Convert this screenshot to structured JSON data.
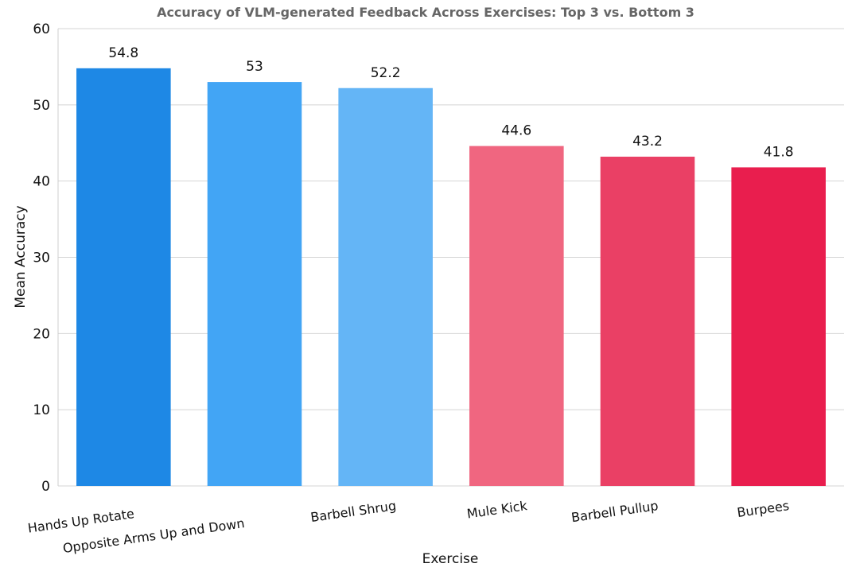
{
  "chart_data": {
    "type": "bar",
    "title": "Accuracy of VLM-generated Feedback Across Exercises: Top 3 vs. Bottom 3",
    "xlabel": "Exercise",
    "ylabel": "Mean Accuracy",
    "ylim": [
      0,
      60
    ],
    "yticks": [
      0,
      10,
      20,
      30,
      40,
      50,
      60
    ],
    "grid": true,
    "categories": [
      "Hands Up Rotate",
      "Opposite Arms Up and Down",
      "Barbell Shrug",
      "Mule Kick",
      "Barbell Pullup",
      "Burpees"
    ],
    "values": [
      54.8,
      53,
      52.2,
      44.6,
      43.2,
      41.8
    ],
    "data_labels": [
      "54.8",
      "53",
      "52.2",
      "44.6",
      "43.2",
      "41.8"
    ],
    "colors": [
      "#1e88e5",
      "#42a5f5",
      "#64b5f6",
      "#f06680",
      "#ea4065",
      "#e91e4e"
    ]
  }
}
